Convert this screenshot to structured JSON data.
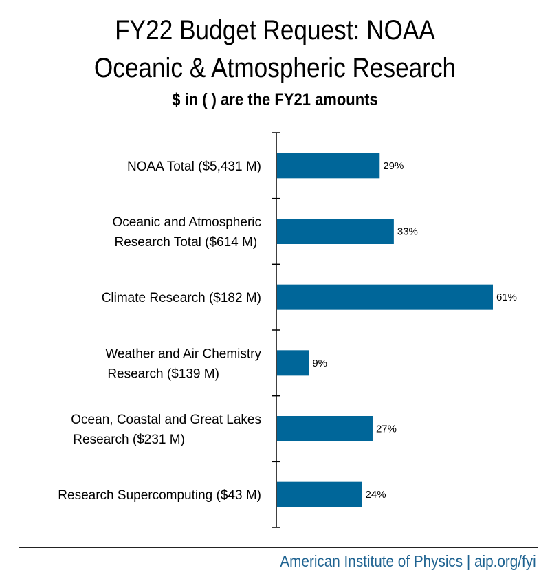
{
  "chart_data": {
    "type": "bar",
    "orientation": "horizontal",
    "title": "FY22 Budget Request: NOAA",
    "title_line2": "Oceanic & Atmospheric Research",
    "subtitle": "$ in ( ) are the FY21 amounts",
    "categories": [
      [
        "NOAA Total ($5,431 M)"
      ],
      [
        "Oceanic and Atmospheric",
        "Research Total ($614 M)"
      ],
      [
        "Climate Research ($182 M)"
      ],
      [
        "Weather and Air Chemistry",
        "Research ($139 M)"
      ],
      [
        "Ocean, Coastal and Great Lakes",
        "Research ($231 M)"
      ],
      [
        "Research Supercomputing ($43 M)"
      ]
    ],
    "values": [
      29,
      33,
      61,
      9,
      27,
      24
    ],
    "data_labels": [
      "29%",
      "33%",
      "61%",
      "9%",
      "27%",
      "24%"
    ],
    "unit": "%",
    "xlim": [
      0,
      70
    ],
    "bar_color": "#006699",
    "grid": false
  },
  "footer": "American Institute of Physics | aip.org/fyi"
}
